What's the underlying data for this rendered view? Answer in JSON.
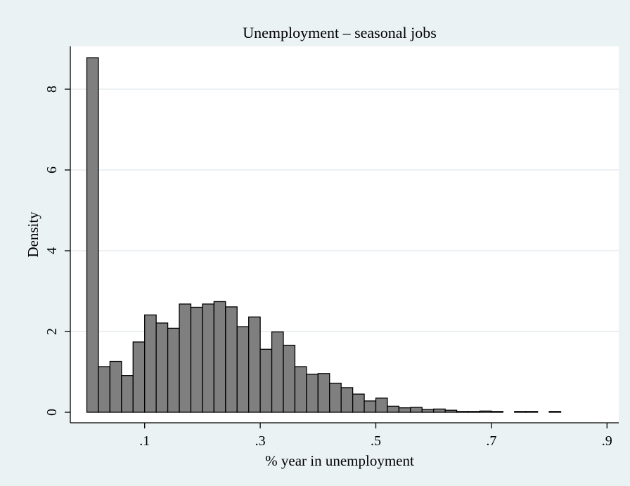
{
  "chart_data": {
    "type": "bar",
    "title": "Unemployment – seasonal jobs",
    "xlabel": "% year in unemployment",
    "ylabel": "Density",
    "xlim": [
      -0.02,
      0.9
    ],
    "ylim": [
      0,
      9.3
    ],
    "bin_width": 0.02,
    "x_ticks": [
      {
        "value": 0.1,
        "label": ".1"
      },
      {
        "value": 0.3,
        "label": ".3"
      },
      {
        "value": 0.5,
        "label": ".5"
      },
      {
        "value": 0.7,
        "label": ".7"
      },
      {
        "value": 0.9,
        "label": ".9"
      }
    ],
    "y_ticks": [
      {
        "value": 0,
        "label": "0"
      },
      {
        "value": 2,
        "label": "2"
      },
      {
        "value": 4,
        "label": "4"
      },
      {
        "value": 6,
        "label": "6"
      },
      {
        "value": 8,
        "label": "8"
      }
    ],
    "grid": true,
    "bins": [
      {
        "x": 0.0,
        "density": 8.78
      },
      {
        "x": 0.02,
        "density": 1.13
      },
      {
        "x": 0.04,
        "density": 1.26
      },
      {
        "x": 0.06,
        "density": 0.91
      },
      {
        "x": 0.08,
        "density": 1.74
      },
      {
        "x": 0.1,
        "density": 2.41
      },
      {
        "x": 0.12,
        "density": 2.21
      },
      {
        "x": 0.14,
        "density": 2.08
      },
      {
        "x": 0.16,
        "density": 2.68
      },
      {
        "x": 0.18,
        "density": 2.6
      },
      {
        "x": 0.2,
        "density": 2.68
      },
      {
        "x": 0.22,
        "density": 2.74
      },
      {
        "x": 0.24,
        "density": 2.61
      },
      {
        "x": 0.26,
        "density": 2.12
      },
      {
        "x": 0.28,
        "density": 2.36
      },
      {
        "x": 0.3,
        "density": 1.56
      },
      {
        "x": 0.32,
        "density": 1.99
      },
      {
        "x": 0.34,
        "density": 1.66
      },
      {
        "x": 0.36,
        "density": 1.13
      },
      {
        "x": 0.38,
        "density": 0.94
      },
      {
        "x": 0.4,
        "density": 0.96
      },
      {
        "x": 0.42,
        "density": 0.72
      },
      {
        "x": 0.44,
        "density": 0.61
      },
      {
        "x": 0.46,
        "density": 0.45
      },
      {
        "x": 0.48,
        "density": 0.28
      },
      {
        "x": 0.5,
        "density": 0.35
      },
      {
        "x": 0.52,
        "density": 0.15
      },
      {
        "x": 0.54,
        "density": 0.11
      },
      {
        "x": 0.56,
        "density": 0.12
      },
      {
        "x": 0.58,
        "density": 0.07
      },
      {
        "x": 0.6,
        "density": 0.08
      },
      {
        "x": 0.62,
        "density": 0.05
      },
      {
        "x": 0.64,
        "density": 0.02
      },
      {
        "x": 0.66,
        "density": 0.02
      },
      {
        "x": 0.68,
        "density": 0.03
      },
      {
        "x": 0.7,
        "density": 0.02
      },
      {
        "x": 0.74,
        "density": 0.02
      },
      {
        "x": 0.76,
        "density": 0.02
      },
      {
        "x": 0.8,
        "density": 0.02
      }
    ],
    "colors": {
      "background": "#eaf2f3",
      "plot_background": "#ffffff",
      "bar_fill": "#7f7f7f",
      "bar_stroke": "#000000",
      "grid": "#e6ecee"
    }
  }
}
